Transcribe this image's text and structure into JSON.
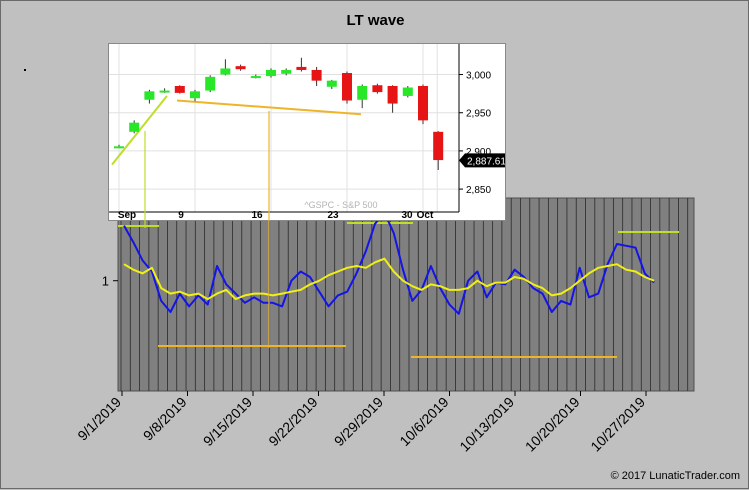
{
  "title": "LT wave",
  "copyright": "© 2017 LunaticTrader.com",
  "colors": {
    "background": "#c0c0c0",
    "plot_bg": "#808080",
    "blue": "#1414e6",
    "yellow": "#f0f014",
    "orange": "#f0b428",
    "green": "#bede28",
    "candle_up": "#28e628",
    "candle_down": "#e61414"
  },
  "chart_data": [
    {
      "type": "line",
      "title": "LT wave",
      "x_start": "9/1/2019",
      "x_tick_labels": [
        "9/1/2019",
        "9/8/2019",
        "9/15/2019",
        "9/22/2019",
        "9/29/2019",
        "10/6/2019",
        "10/13/2019",
        "10/20/2019",
        "10/27/2019"
      ],
      "y_tick_labels": [
        "1"
      ],
      "ylim": [
        0.4,
        1.45
      ],
      "grid": "vertical",
      "series": [
        {
          "color": "#1414e6",
          "values": [
            1.3,
            1.21,
            1.11,
            1.05,
            0.89,
            0.83,
            0.93,
            0.86,
            0.92,
            0.87,
            1.08,
            0.98,
            0.93,
            0.88,
            0.91,
            0.88,
            0.88,
            0.86,
            1.0,
            1.05,
            1.02,
            0.94,
            0.86,
            0.92,
            0.94,
            1.04,
            1.16,
            1.31,
            1.37,
            1.26,
            1.06,
            0.89,
            0.95,
            1.08,
            0.96,
            0.87,
            0.82,
            1.0,
            1.05,
            0.91,
            0.99,
            0.98,
            1.06,
            1.02,
            0.96,
            0.93,
            0.83,
            0.89,
            0.87,
            1.07,
            0.91,
            0.93,
            1.09,
            1.2,
            1.19,
            1.18,
            1.04,
            0.99
          ]
        },
        {
          "color": "#f0f014",
          "values": [
            1.09,
            1.06,
            1.04,
            1.07,
            0.96,
            0.93,
            0.94,
            0.92,
            0.93,
            0.9,
            0.93,
            0.95,
            0.9,
            0.92,
            0.93,
            0.93,
            0.92,
            0.93,
            0.94,
            0.95,
            0.98,
            1.0,
            1.03,
            1.05,
            1.07,
            1.08,
            1.07,
            1.1,
            1.12,
            1.05,
            1.0,
            0.97,
            0.95,
            0.98,
            0.97,
            0.95,
            0.95,
            0.96,
            1.0,
            0.97,
            0.99,
            0.99,
            1.02,
            1.01,
            0.98,
            0.96,
            0.92,
            0.93,
            0.96,
            1.0,
            1.04,
            1.07,
            1.08,
            1.09,
            1.06,
            1.05,
            1.02,
            1.0
          ]
        }
      ]
    },
    {
      "type": "candlestick",
      "series_label": "^GSPC - S&P 500",
      "last_price_label": "2,887.61",
      "y_tick_labels": [
        "3,000",
        "2,950",
        "2,900",
        "2,850"
      ],
      "ylim": [
        2820,
        3040
      ],
      "x_tick_labels": [
        "Sep",
        "9",
        "16",
        "23",
        "30",
        "Oct"
      ],
      "candles": [
        {
          "o": 2906,
          "c": 2906,
          "h": 2908,
          "l": 2904
        },
        {
          "o": 2925,
          "c": 2937,
          "h": 2940,
          "l": 2923
        },
        {
          "o": 2967,
          "c": 2978,
          "h": 2980,
          "l": 2962
        },
        {
          "o": 2979,
          "c": 2979,
          "h": 2982,
          "l": 2976
        },
        {
          "o": 2985,
          "c": 2976,
          "h": 2986,
          "l": 2975
        },
        {
          "o": 2969,
          "c": 2978,
          "h": 2980,
          "l": 2965
        },
        {
          "o": 2979,
          "c": 2997,
          "h": 2999,
          "l": 2977
        },
        {
          "o": 3000,
          "c": 3008,
          "h": 3020,
          "l": 2999
        },
        {
          "o": 3011,
          "c": 3007,
          "h": 3013,
          "l": 3005
        },
        {
          "o": 2998,
          "c": 2998,
          "h": 3000,
          "l": 2995
        },
        {
          "o": 2998,
          "c": 3006,
          "h": 3008,
          "l": 2996
        },
        {
          "o": 3001,
          "c": 3006,
          "h": 3008,
          "l": 2999
        },
        {
          "o": 3010,
          "c": 3006,
          "h": 3022,
          "l": 3004
        },
        {
          "o": 3006,
          "c": 2992,
          "h": 3010,
          "l": 2985
        },
        {
          "o": 2984,
          "c": 2992,
          "h": 2993,
          "l": 2981
        },
        {
          "o": 3002,
          "c": 2966,
          "h": 3004,
          "l": 2962
        },
        {
          "o": 2967,
          "c": 2985,
          "h": 2987,
          "l": 2956
        },
        {
          "o": 2986,
          "c": 2977,
          "h": 2988,
          "l": 2975
        },
        {
          "o": 2985,
          "c": 2962,
          "h": 2986,
          "l": 2950
        },
        {
          "o": 2972,
          "c": 2983,
          "h": 2985,
          "l": 2970
        },
        {
          "o": 2985,
          "c": 2940,
          "h": 2987,
          "l": 2935
        },
        {
          "o": 2925,
          "c": 2888,
          "h": 2926,
          "l": 2875
        }
      ]
    }
  ]
}
